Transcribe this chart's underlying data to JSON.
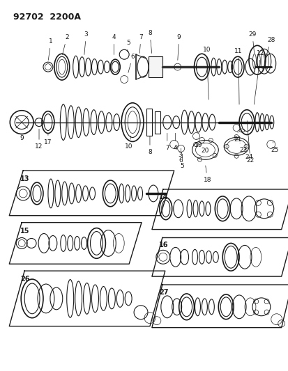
{
  "title": "92702  2200A",
  "bg_color": "#ffffff",
  "line_color": "#1a1a1a",
  "fig_width": 4.14,
  "fig_height": 5.33,
  "dpi": 100
}
